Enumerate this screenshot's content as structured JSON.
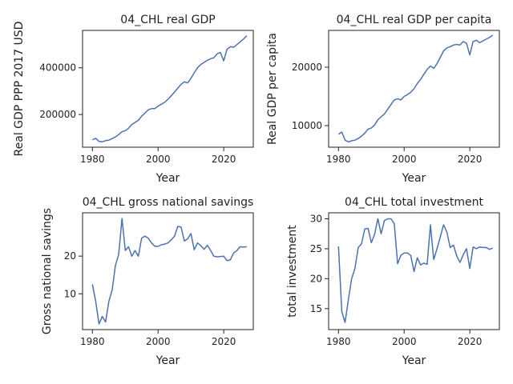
{
  "figure": {
    "colors": {
      "line": "#4c72b0",
      "axes": "#222222",
      "background": "#ffffff"
    }
  },
  "chart_data": [
    {
      "type": "line",
      "title": "04_CHL real GDP",
      "xlabel": "Year",
      "ylabel": "Real GDP PPP 2017 USD",
      "xlim": [
        1977,
        2029
      ],
      "ylim": [
        60000,
        560000
      ],
      "xticks": [
        1980,
        2000,
        2020
      ],
      "yticks": [
        200000,
        400000
      ],
      "ytick_labels": [
        "200000",
        "400000"
      ],
      "grid": false,
      "x": [
        1980,
        1981,
        1982,
        1983,
        1984,
        1985,
        1986,
        1987,
        1988,
        1989,
        1990,
        1991,
        1992,
        1993,
        1994,
        1995,
        1996,
        1997,
        1998,
        1999,
        2000,
        2001,
        2002,
        2003,
        2004,
        2005,
        2006,
        2007,
        2008,
        2009,
        2010,
        2011,
        2012,
        2013,
        2014,
        2015,
        2016,
        2017,
        2018,
        2019,
        2020,
        2021,
        2022,
        2023,
        2024,
        2025,
        2026,
        2027
      ],
      "y": [
        92000,
        98000,
        85000,
        83000,
        88000,
        90000,
        97000,
        104000,
        114000,
        126000,
        131000,
        141000,
        157000,
        166000,
        175000,
        193000,
        206000,
        220000,
        225000,
        225000,
        236000,
        244000,
        252000,
        265000,
        280000,
        296000,
        313000,
        329000,
        340000,
        335000,
        355000,
        378000,
        400000,
        414000,
        423000,
        432000,
        439000,
        443000,
        460000,
        465000,
        430000,
        479000,
        490000,
        488000,
        499000,
        511000,
        523000,
        537000
      ]
    },
    {
      "type": "line",
      "title": "04_CHL real GDP per capita",
      "xlabel": "Year",
      "ylabel": "Real GDP per capita",
      "xlim": [
        1977,
        2029
      ],
      "ylim": [
        6300,
        26300
      ],
      "xticks": [
        1980,
        2000,
        2020
      ],
      "yticks": [
        10000,
        20000
      ],
      "ytick_labels": [
        "10000",
        "20000"
      ],
      "grid": false,
      "x": [
        1980,
        1981,
        1982,
        1983,
        1984,
        1985,
        1986,
        1987,
        1988,
        1989,
        1990,
        1991,
        1992,
        1993,
        1994,
        1995,
        1996,
        1997,
        1998,
        1999,
        2000,
        2001,
        2002,
        2003,
        2004,
        2005,
        2006,
        2007,
        2008,
        2009,
        2010,
        2011,
        2012,
        2013,
        2014,
        2015,
        2016,
        2017,
        2018,
        2019,
        2020,
        2021,
        2022,
        2023,
        2024,
        2025,
        2026,
        2027
      ],
      "y": [
        8500,
        8900,
        7500,
        7200,
        7400,
        7500,
        7800,
        8200,
        8700,
        9400,
        9600,
        10100,
        11000,
        11500,
        12000,
        12800,
        13600,
        14400,
        14600,
        14400,
        15000,
        15300,
        15700,
        16300,
        17200,
        17900,
        18800,
        19600,
        20200,
        19800,
        20600,
        21700,
        22800,
        23300,
        23500,
        23800,
        23900,
        23800,
        24400,
        24100,
        22100,
        24400,
        24600,
        24200,
        24500,
        24800,
        25100,
        25500
      ]
    },
    {
      "type": "line",
      "title": "04_CHL gross national savings",
      "xlabel": "Year",
      "ylabel": "Gross national savings",
      "xlim": [
        1977,
        2029
      ],
      "ylim": [
        0.5,
        31.5
      ],
      "xticks": [
        1980,
        2000,
        2020
      ],
      "yticks": [
        10,
        20
      ],
      "ytick_labels": [
        "10",
        "20"
      ],
      "grid": false,
      "x": [
        1980,
        1981,
        1982,
        1983,
        1984,
        1985,
        1986,
        1987,
        1988,
        1989,
        1990,
        1991,
        1992,
        1993,
        1994,
        1995,
        1996,
        1997,
        1998,
        1999,
        2000,
        2001,
        2002,
        2003,
        2004,
        2005,
        2006,
        2007,
        2008,
        2009,
        2010,
        2011,
        2012,
        2013,
        2014,
        2015,
        2016,
        2017,
        2018,
        2019,
        2020,
        2021,
        2022,
        2023,
        2024,
        2025,
        2026,
        2027
      ],
      "y": [
        12.5,
        8.0,
        2.0,
        4.0,
        2.5,
        8.0,
        11.0,
        17.5,
        20.5,
        30.0,
        21.5,
        22.5,
        20.0,
        21.5,
        20.0,
        24.8,
        25.3,
        24.8,
        23.5,
        22.6,
        22.6,
        23.0,
        23.2,
        23.5,
        24.3,
        25.3,
        27.9,
        27.7,
        24.0,
        24.6,
        26.0,
        21.7,
        23.5,
        22.8,
        21.8,
        22.9,
        21.5,
        20.0,
        19.8,
        19.9,
        20.0,
        18.8,
        19.0,
        20.8,
        21.5,
        22.5,
        22.4,
        22.5
      ]
    },
    {
      "type": "line",
      "title": "04_CHL total investment",
      "xlabel": "Year",
      "ylabel": "total investment",
      "xlim": [
        1977,
        2029
      ],
      "ylim": [
        11.5,
        31.0
      ],
      "xticks": [
        1980,
        2000,
        2020
      ],
      "yticks": [
        15,
        20,
        25,
        30
      ],
      "ytick_labels": [
        "15",
        "20",
        "25",
        "30"
      ],
      "grid": false,
      "x": [
        1980,
        1981,
        1982,
        1983,
        1984,
        1985,
        1986,
        1987,
        1988,
        1989,
        1990,
        1991,
        1992,
        1993,
        1994,
        1995,
        1996,
        1997,
        1998,
        1999,
        2000,
        2001,
        2002,
        2003,
        2004,
        2005,
        2006,
        2007,
        2008,
        2009,
        2010,
        2011,
        2012,
        2013,
        2014,
        2015,
        2016,
        2017,
        2018,
        2019,
        2020,
        2021,
        2022,
        2023,
        2024,
        2025,
        2026,
        2027
      ],
      "y": [
        25.4,
        14.5,
        12.7,
        16.5,
        20.0,
        21.7,
        25.2,
        25.8,
        28.3,
        28.4,
        26.0,
        27.4,
        30.0,
        27.5,
        29.7,
        30.0,
        30.0,
        29.2,
        22.5,
        23.9,
        24.3,
        24.3,
        23.9,
        21.2,
        23.5,
        22.3,
        22.6,
        22.4,
        29.0,
        23.2,
        25.0,
        27.0,
        29.0,
        27.8,
        25.2,
        25.6,
        23.8,
        22.7,
        24.0,
        25.0,
        21.7,
        25.3,
        25.0,
        25.3,
        25.2,
        25.2,
        24.9,
        25.1
      ]
    }
  ]
}
